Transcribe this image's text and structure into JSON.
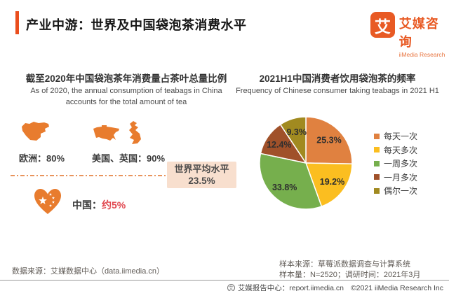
{
  "header": {
    "title": "产业中游：世界及中国袋泡茶消费水平",
    "logo": {
      "mark": "艾",
      "name_cn": "艾媒咨询",
      "name_en": "iiMedia Research"
    }
  },
  "left_panel": {
    "title": "截至2020年中国袋泡茶年消费量占茶叶总量比例",
    "subtitle_en_line1": "As of 2020, the annual consumption of teabags in China",
    "subtitle_en_line2": "accounts for the total amount of tea",
    "europe_label": "欧洲：80%",
    "us_uk_label": "美国、英国：90%",
    "world_avg_title": "世界平均水平",
    "world_avg_value": "23.5%",
    "china_label": "中国：",
    "china_value": "约5%",
    "source": "数据来源：艾媒数据中心（data.iimedia.cn）"
  },
  "right_panel": {
    "title": "2021H1中国消费者饮用袋泡茶的频率",
    "subtitle_en": "Frequency of Chinese consumer taking teabags in 2021 H1",
    "sample_source": "样本来源：草莓派数据调查与计算系统",
    "sample_info": "样本量：N=2520；调研时间：2021年3月"
  },
  "chart_data": {
    "type": "pie",
    "title": "2021H1中国消费者饮用袋泡茶的频率",
    "labels": [
      "每天一次",
      "每天多次",
      "一周多次",
      "一月多次",
      "偶尔一次"
    ],
    "values": [
      25.3,
      19.2,
      33.8,
      12.4,
      9.3
    ],
    "colors": [
      "#e08140",
      "#fbbe20",
      "#76af4d",
      "#a0512a",
      "#a18a20"
    ],
    "start_angle_deg": 0,
    "direction": "clockwise",
    "legend_position": "right",
    "label_format": "percent_inside"
  },
  "footer": {
    "icon_glyph": "艾",
    "report_link": "艾媒报告中心：report.iimedia.cn",
    "copyright": "©2021  iiMedia Research Inc"
  },
  "colors": {
    "accent": "#ea4e1d",
    "logo_orange": "#e85a24",
    "map_orange": "#e87c2e",
    "china_value_red": "#e1474f",
    "world_box_bg": "#f8dfce"
  }
}
